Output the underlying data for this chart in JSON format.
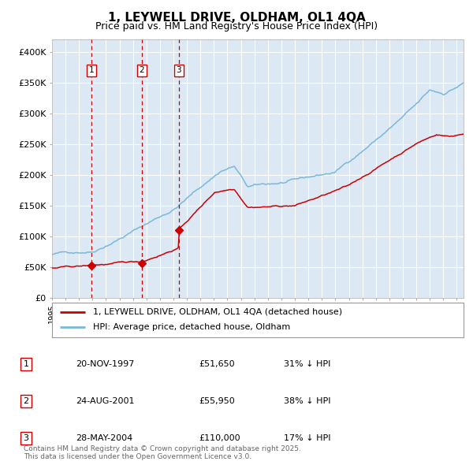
{
  "title_line1": "1, LEYWELL DRIVE, OLDHAM, OL1 4QA",
  "title_line2": "Price paid vs. HM Land Registry's House Price Index (HPI)",
  "legend_line1": "1, LEYWELL DRIVE, OLDHAM, OL1 4QA (detached house)",
  "legend_line2": "HPI: Average price, detached house, Oldham",
  "plot_bg_color": "#dce9f5",
  "grid_color": "#ffffff",
  "hpi_color": "#7ab8d9",
  "price_color": "#cc0000",
  "purchases": [
    {
      "num": 1,
      "date_dec": 1997.9,
      "price": 51650,
      "label": "20-NOV-1997",
      "pct": "31% ↓ HPI"
    },
    {
      "num": 2,
      "date_dec": 2001.65,
      "price": 55950,
      "label": "24-AUG-2001",
      "pct": "38% ↓ HPI"
    },
    {
      "num": 3,
      "date_dec": 2004.4,
      "price": 110000,
      "label": "28-MAY-2004",
      "pct": "17% ↓ HPI"
    }
  ],
  "ylabel_ticks": [
    "£0",
    "£50K",
    "£100K",
    "£150K",
    "£200K",
    "£250K",
    "£300K",
    "£350K",
    "£400K"
  ],
  "ytick_vals": [
    0,
    50000,
    100000,
    150000,
    200000,
    250000,
    300000,
    350000,
    400000
  ],
  "ylim": [
    0,
    420000
  ],
  "xlim_start": 1995.0,
  "xlim_end": 2025.5,
  "footer": "Contains HM Land Registry data © Crown copyright and database right 2025.\nThis data is licensed under the Open Government Licence v3.0."
}
